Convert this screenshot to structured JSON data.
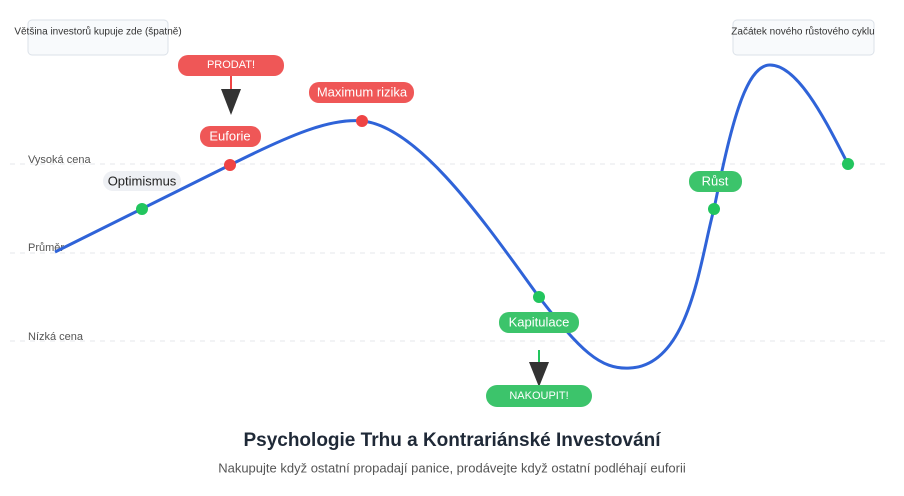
{
  "notes": {
    "left": "Většina investorů kupuje zde (špatně)",
    "right": "Začátek nového růstového cyklu"
  },
  "levels": {
    "high": "Vysoká cena",
    "mid": "Průměr",
    "low": "Nízká cena"
  },
  "phases": {
    "optimism": "Optimismus",
    "euphoria": "Euforie",
    "peak": "Maximum rizika",
    "capitulation": "Kapitulace",
    "growth": "Růst"
  },
  "actions": {
    "sell": "PRODAT!",
    "buy": "NAKOUPIT!"
  },
  "title": "Psychologie Trhu a Kontrariánské Investování",
  "subtitle": "Nakupujte když ostatní propadají panice, prodávejte když ostatní podléhají euforii"
}
